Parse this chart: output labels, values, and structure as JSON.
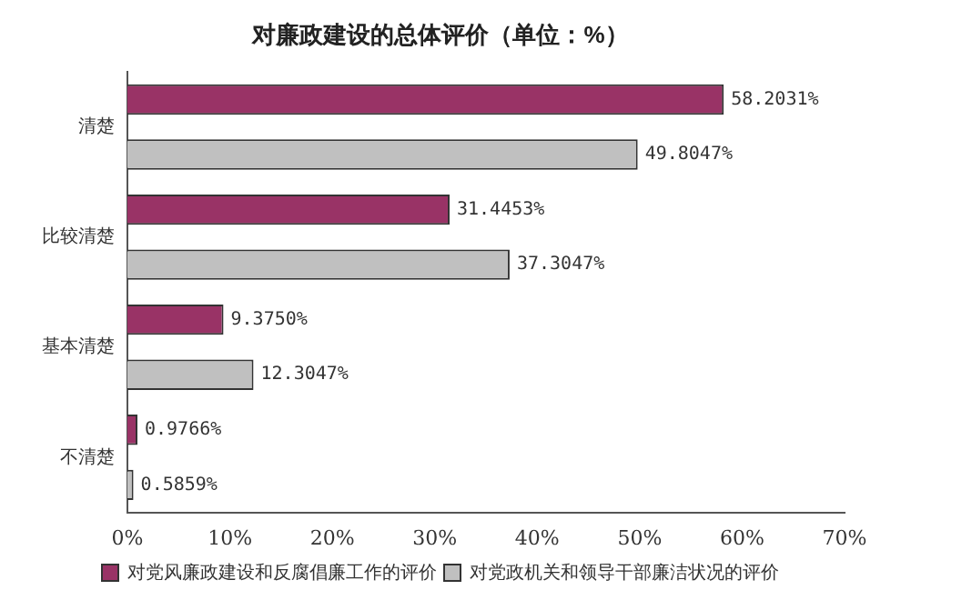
{
  "chart_data": {
    "type": "bar",
    "orientation": "horizontal",
    "title": "对廉政建设的总体评价（单位：%）",
    "categories": [
      "清楚",
      "比较清楚",
      "基本清楚",
      "不清楚"
    ],
    "series": [
      {
        "name": "对党风廉政建设和反腐倡廉工作的评价",
        "color": "#993366",
        "values": [
          58.2031,
          31.4453,
          9.375,
          0.9766
        ],
        "value_labels": [
          "58.2031%",
          "31.4453%",
          "9.3750%",
          "0.9766%"
        ]
      },
      {
        "name": "对党政机关和领导干部廉洁状况的评价",
        "color": "#c0c0c0",
        "values": [
          49.8047,
          37.3047,
          12.3047,
          0.5859
        ],
        "value_labels": [
          "49.8047%",
          "37.3047%",
          "12.3047%",
          "0.5859%"
        ]
      }
    ],
    "xlim": [
      0,
      70
    ],
    "xticks": [
      {
        "value": 0,
        "label": "0%"
      },
      {
        "value": 10,
        "label": "10%"
      },
      {
        "value": 20,
        "label": "20%"
      },
      {
        "value": 30,
        "label": "30%"
      },
      {
        "value": 40,
        "label": "40%"
      },
      {
        "value": 50,
        "label": "50%"
      },
      {
        "value": 60,
        "label": "60%"
      },
      {
        "value": 70,
        "label": "70%"
      }
    ],
    "grid": false,
    "legend": "bottom"
  }
}
